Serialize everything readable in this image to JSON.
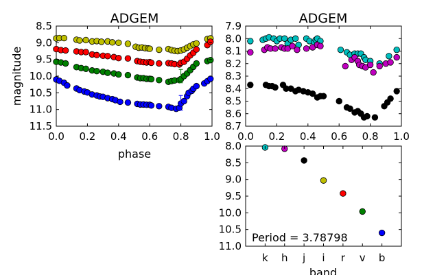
{
  "chart_data": [
    {
      "id": "left",
      "type": "scatter",
      "title": "ADGEM",
      "xlabel": "phase",
      "ylabel": "magnitude",
      "xlim": [
        0.0,
        1.0
      ],
      "ylim": [
        11.5,
        8.5
      ],
      "y_inverted": true,
      "xticks": [
        "0.0",
        "0.2",
        "0.4",
        "0.6",
        "0.8",
        "1.0"
      ],
      "yticks": [
        "8.5",
        "9.0",
        "9.5",
        "10.0",
        "10.5",
        "11.0",
        "11.5"
      ],
      "series": [
        {
          "color": "#bfbf00",
          "x": [
            0.0,
            0.02,
            0.05,
            0.13,
            0.15,
            0.19,
            0.23,
            0.26,
            0.29,
            0.33,
            0.36,
            0.4,
            0.46,
            0.51,
            0.53,
            0.55,
            0.57,
            0.59,
            0.6,
            0.66,
            0.72,
            0.74,
            0.76,
            0.78,
            0.8,
            0.82,
            0.84,
            0.86,
            0.88,
            0.9,
            0.97,
            0.99
          ],
          "y": [
            8.87,
            8.86,
            8.86,
            8.91,
            8.93,
            8.92,
            8.96,
            8.95,
            8.97,
            8.96,
            8.99,
            9.0,
            9.03,
            9.12,
            9.15,
            9.14,
            9.16,
            9.17,
            9.18,
            9.21,
            9.19,
            9.22,
            9.24,
            9.25,
            9.23,
            9.2,
            9.15,
            9.1,
            9.05,
            9.02,
            8.89,
            8.87
          ]
        },
        {
          "color": "#ff0000",
          "x": [
            0.0,
            0.03,
            0.06,
            0.13,
            0.16,
            0.19,
            0.23,
            0.26,
            0.3,
            0.33,
            0.37,
            0.4,
            0.46,
            0.52,
            0.54,
            0.56,
            0.58,
            0.6,
            0.61,
            0.66,
            0.72,
            0.74,
            0.76,
            0.79,
            0.8,
            0.82,
            0.84,
            0.86,
            0.88,
            0.9,
            0.97,
            0.99
          ],
          "y": [
            9.19,
            9.22,
            9.23,
            9.26,
            9.28,
            9.28,
            9.35,
            9.37,
            9.39,
            9.4,
            9.43,
            9.46,
            9.47,
            9.55,
            9.57,
            9.58,
            9.59,
            9.58,
            9.6,
            9.62,
            9.61,
            9.62,
            9.64,
            9.65,
            9.6,
            9.57,
            9.48,
            9.38,
            9.3,
            9.2,
            9.07,
            8.97
          ]
        },
        {
          "color": "#008000",
          "x": [
            0.0,
            0.03,
            0.06,
            0.13,
            0.16,
            0.19,
            0.23,
            0.26,
            0.3,
            0.33,
            0.37,
            0.4,
            0.46,
            0.52,
            0.54,
            0.56,
            0.58,
            0.6,
            0.61,
            0.66,
            0.72,
            0.74,
            0.76,
            0.79,
            0.8,
            0.82,
            0.84,
            0.86,
            0.88,
            0.9,
            0.97,
            0.99
          ],
          "y": [
            9.57,
            9.59,
            9.62,
            9.73,
            9.76,
            9.78,
            9.83,
            9.85,
            9.87,
            9.9,
            9.92,
            9.95,
            9.97,
            10.04,
            10.06,
            10.06,
            10.08,
            10.08,
            10.09,
            10.12,
            10.17,
            10.15,
            10.13,
            10.12,
            10.09,
            10.0,
            9.92,
            9.82,
            9.72,
            9.62,
            9.55,
            9.52
          ]
        },
        {
          "color": "#0000ff",
          "x": [
            0.0,
            0.02,
            0.05,
            0.07,
            0.13,
            0.15,
            0.18,
            0.2,
            0.23,
            0.26,
            0.28,
            0.3,
            0.33,
            0.36,
            0.38,
            0.41,
            0.46,
            0.52,
            0.54,
            0.56,
            0.58,
            0.6,
            0.61,
            0.66,
            0.72,
            0.74,
            0.77,
            0.79,
            0.8,
            0.82,
            0.84,
            0.85,
            0.87,
            0.88,
            0.9,
            0.95,
            0.97,
            0.99
          ],
          "y": [
            10.1,
            10.14,
            10.2,
            10.28,
            10.37,
            10.42,
            10.46,
            10.49,
            10.55,
            10.58,
            10.61,
            10.62,
            10.66,
            10.69,
            10.72,
            10.77,
            10.79,
            10.83,
            10.85,
            10.85,
            10.86,
            10.86,
            10.88,
            10.9,
            10.92,
            10.95,
            10.98,
            10.95,
            10.82,
            10.75,
            10.6,
            10.5,
            10.44,
            10.38,
            10.3,
            10.22,
            10.15,
            10.08
          ]
        }
      ],
      "error_bars": [
        {
          "color": "#008000",
          "x": 0.8,
          "y": 10.0,
          "yerr": 0.2
        },
        {
          "color": "#0000ff",
          "x": 0.8,
          "y": 10.8,
          "yerr": 0.22
        }
      ]
    },
    {
      "id": "right-top",
      "type": "scatter",
      "title": "ADGEM",
      "xlim": [
        0.0,
        1.0
      ],
      "ylim": [
        8.7,
        7.9
      ],
      "y_inverted": true,
      "xticks": [
        "0.0",
        "0.2",
        "0.4",
        "0.6",
        "0.8",
        "1.0"
      ],
      "yticks": [
        "7.9",
        "8.0",
        "8.1",
        "8.2",
        "8.3",
        "8.4",
        "8.5",
        "8.6",
        "8.7"
      ],
      "series": [
        {
          "color": "#00bfbf",
          "x": [
            0.03,
            0.11,
            0.13,
            0.15,
            0.18,
            0.2,
            0.22,
            0.25,
            0.27,
            0.29,
            0.32,
            0.34,
            0.39,
            0.41,
            0.44,
            0.45,
            0.46,
            0.48,
            0.61,
            0.65,
            0.67,
            0.7,
            0.72,
            0.74,
            0.76,
            0.77,
            0.8,
            0.86,
            0.92,
            0.97
          ],
          "y": [
            8.02,
            8.01,
            8.0,
            7.99,
            8.0,
            8.02,
            8.0,
            8.0,
            8.04,
            8.01,
            8.0,
            8.05,
            8.0,
            8.02,
            8.03,
            8.01,
            8.0,
            8.02,
            8.09,
            8.11,
            8.13,
            8.12,
            8.12,
            8.12,
            8.15,
            8.17,
            8.18,
            8.2,
            8.14,
            8.09
          ]
        },
        {
          "color": "#bf00bf",
          "x": [
            0.03,
            0.12,
            0.14,
            0.16,
            0.19,
            0.23,
            0.25,
            0.27,
            0.3,
            0.33,
            0.39,
            0.43,
            0.46,
            0.48,
            0.64,
            0.68,
            0.7,
            0.72,
            0.73,
            0.75,
            0.77,
            0.8,
            0.82,
            0.86,
            0.9,
            0.93,
            0.97
          ],
          "y": [
            8.11,
            8.09,
            8.07,
            8.08,
            8.08,
            8.07,
            8.08,
            8.08,
            8.06,
            8.09,
            8.08,
            8.07,
            8.05,
            8.06,
            8.22,
            8.17,
            8.15,
            8.18,
            8.21,
            8.22,
            8.23,
            8.21,
            8.27,
            8.22,
            8.2,
            8.19,
            8.15
          ]
        },
        {
          "color": "#000000",
          "x": [
            0.03,
            0.13,
            0.15,
            0.17,
            0.19,
            0.24,
            0.26,
            0.29,
            0.32,
            0.34,
            0.37,
            0.4,
            0.43,
            0.46,
            0.48,
            0.5,
            0.6,
            0.65,
            0.67,
            0.7,
            0.72,
            0.74,
            0.76,
            0.78,
            0.83,
            0.89,
            0.91,
            0.93,
            0.97
          ],
          "y": [
            8.37,
            8.37,
            8.38,
            8.38,
            8.39,
            8.37,
            8.4,
            8.4,
            8.42,
            8.41,
            8.42,
            8.43,
            8.44,
            8.47,
            8.46,
            8.46,
            8.5,
            8.55,
            8.56,
            8.59,
            8.58,
            8.6,
            8.63,
            8.62,
            8.63,
            8.54,
            8.51,
            8.48,
            8.42
          ]
        }
      ]
    },
    {
      "id": "right-bottom",
      "type": "scatter",
      "xlabel": "band",
      "ylim": [
        11.0,
        8.0
      ],
      "y_inverted": true,
      "categories": [
        "k",
        "h",
        "j",
        "i",
        "r",
        "v",
        "b"
      ],
      "yticks": [
        "8.0",
        "8.5",
        "9.0",
        "9.5",
        "10.0",
        "10.5",
        "11.0"
      ],
      "points": [
        {
          "band": "k",
          "y": 8.04,
          "color": "#00bfbf"
        },
        {
          "band": "h",
          "y": 8.08,
          "color": "#bf00bf"
        },
        {
          "band": "j",
          "y": 8.43,
          "color": "#000000"
        },
        {
          "band": "i",
          "y": 9.03,
          "color": "#bfbf00"
        },
        {
          "band": "r",
          "y": 9.42,
          "color": "#ff0000"
        },
        {
          "band": "v",
          "y": 9.96,
          "color": "#008000"
        },
        {
          "band": "b",
          "y": 10.6,
          "color": "#0000ff"
        }
      ],
      "annotation": "Period = 3.78798"
    }
  ]
}
